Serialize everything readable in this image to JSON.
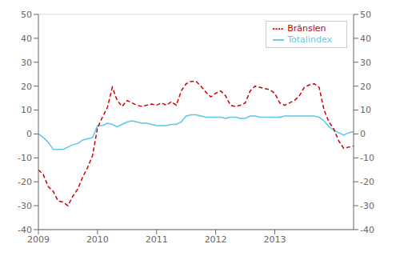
{
  "chart_data": {
    "type": "line",
    "title": "",
    "x": [
      2009,
      2009.0833333333333,
      2009.1666666666667,
      2009.25,
      2009.3333333333333,
      2009.4166666666667,
      2009.5,
      2009.5833333333333,
      2009.6666666666667,
      2009.75,
      2009.8333333333333,
      2009.9166666666667,
      2010,
      2010.0833333333333,
      2010.1666666666667,
      2010.25,
      2010.3333333333333,
      2010.4166666666667,
      2010.5,
      2010.5833333333333,
      2010.6666666666667,
      2010.75,
      2010.8333333333333,
      2010.9166666666667,
      2011,
      2011.0833333333333,
      2011.1666666666667,
      2011.25,
      2011.3333333333333,
      2011.4166666666667,
      2011.5,
      2011.5833333333333,
      2011.6666666666667,
      2011.75,
      2011.8333333333333,
      2011.9166666666667,
      2012,
      2012.0833333333333,
      2012.1666666666667,
      2012.25,
      2012.3333333333333,
      2012.4166666666667,
      2012.5,
      2012.5833333333333,
      2012.6666666666667,
      2012.75,
      2012.8333333333333,
      2012.9166666666667,
      2013,
      2013.0833333333333,
      2013.1666666666667,
      2013.25,
      2013.3333333333333,
      2013.4166666666667,
      2013.5,
      2013.5833333333333,
      2013.6666666666667,
      2013.75,
      2013.8333333333333,
      2013.9166666666667,
      2014,
      2014.0833333333333,
      2014.1666666666667,
      2014.25,
      2014.3333333333333
    ],
    "series": [
      {
        "name": "Totalindex",
        "color": "#5bc8e8",
        "line_style": "solid",
        "values": [
          0.0,
          -1.5,
          -3.5,
          -6.5,
          -6.5,
          -6.5,
          -5.5,
          -4.5,
          -4.0,
          -2.5,
          -2.0,
          -1.5,
          3.5,
          3.5,
          4.5,
          4.0,
          3.0,
          4.0,
          5.0,
          5.5,
          5.0,
          4.5,
          4.5,
          4.0,
          3.5,
          3.5,
          3.5,
          4.0,
          4.0,
          5.0,
          7.5,
          8.0,
          8.0,
          7.5,
          7.0,
          7.0,
          7.0,
          7.0,
          6.5,
          7.0,
          7.0,
          6.5,
          6.5,
          7.5,
          7.5,
          7.0,
          7.0,
          7.0,
          7.0,
          7.0,
          7.5,
          7.5,
          7.5,
          7.5,
          7.5,
          7.5,
          7.5,
          7.0,
          5.5,
          3.0,
          1.5,
          0.5,
          -0.5,
          0.5,
          1.0
        ]
      },
      {
        "name": "Bränslen",
        "color": "#cc0000",
        "line_style": "dashed",
        "axis": "y2",
        "values": [
          -15.0,
          -17.0,
          -22.0,
          -24.0,
          -28.0,
          -28.5,
          -30.0,
          -26.0,
          -23.0,
          -18.0,
          -14.0,
          -9.0,
          2.5,
          7.0,
          11.0,
          19.5,
          14.0,
          11.5,
          14.0,
          13.0,
          12.0,
          11.5,
          12.0,
          12.5,
          12.0,
          13.0,
          12.0,
          13.5,
          12.0,
          18.0,
          21.0,
          22.0,
          22.0,
          20.0,
          17.5,
          15.5,
          17.0,
          18.0,
          16.0,
          12.0,
          11.5,
          12.0,
          13.0,
          18.0,
          20.0,
          19.5,
          19.0,
          18.5,
          17.0,
          13.0,
          12.0,
          13.0,
          14.0,
          16.0,
          19.5,
          20.5,
          21.0,
          19.5,
          10.0,
          5.0,
          2.0,
          -3.0,
          -6.0,
          -5.5,
          -5.0
        ]
      }
    ],
    "xlim": [
      2009,
      2014.3333333333333
    ],
    "xticks": [
      2009,
      2010,
      2011,
      2012,
      2013
    ],
    "ylim": [
      -40,
      50
    ],
    "yticks": [
      -40,
      -30,
      -20,
      -10,
      0,
      10,
      20,
      30,
      40,
      50
    ],
    "y2lim": [
      -40,
      50
    ],
    "y2ticks": [
      -40,
      -30,
      -20,
      -10,
      0,
      10,
      20,
      30,
      40,
      50
    ],
    "grid": true,
    "legend": "upper right"
  }
}
